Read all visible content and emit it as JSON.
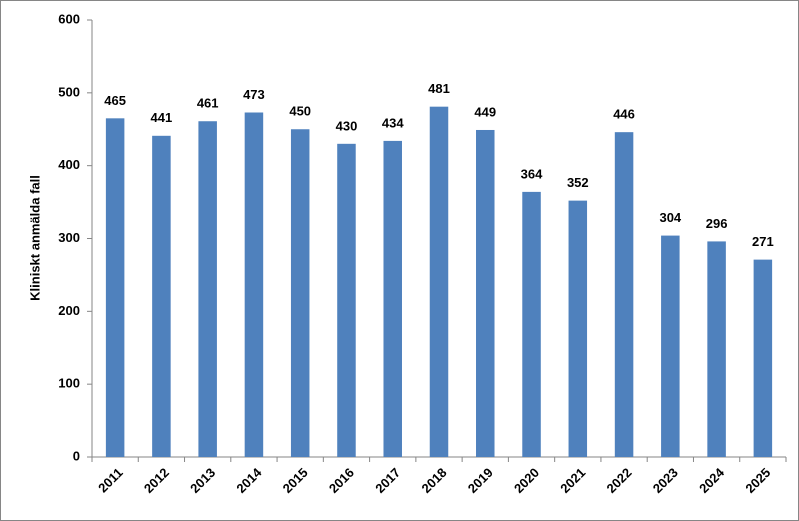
{
  "chart_data": {
    "type": "bar",
    "y_label": "Kliniskt anmälda fall",
    "categories": [
      "2011",
      "2012",
      "2013",
      "2014",
      "2015",
      "2016",
      "2017",
      "2018",
      "2019",
      "2020",
      "2021",
      "2022",
      "2023",
      "2024",
      "2025"
    ],
    "values": [
      465,
      441,
      461,
      473,
      450,
      430,
      434,
      481,
      449,
      364,
      352,
      446,
      304,
      296,
      271
    ],
    "color": "#4f81bd",
    "ylim": [
      0,
      600
    ],
    "yticks": [
      0,
      100,
      200,
      300,
      400,
      500,
      600
    ],
    "grid": false
  }
}
